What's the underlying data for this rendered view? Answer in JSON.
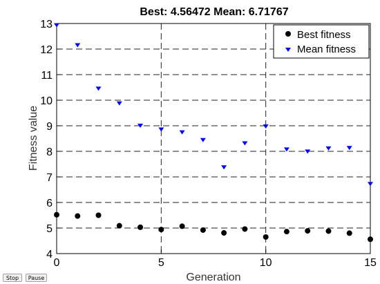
{
  "chart_data": {
    "type": "scatter",
    "title": "Best: 4.56472 Mean: 6.71767",
    "xlabel": "Generation",
    "ylabel": "Fitness value",
    "xlim": [
      0,
      15
    ],
    "ylim": [
      4,
      13
    ],
    "xticks": [
      "0",
      "5",
      "10",
      "15"
    ],
    "yticks": [
      "4",
      "5",
      "6",
      "7",
      "8",
      "9",
      "10",
      "11",
      "12",
      "13"
    ],
    "grid": true,
    "legend_position": "top-right",
    "series": [
      {
        "name": "Best fitness",
        "marker": "circle",
        "color": "#000000",
        "x": [
          0,
          1,
          2,
          3,
          4,
          5,
          6,
          7,
          8,
          9,
          10,
          11,
          12,
          13,
          14,
          15
        ],
        "y": [
          5.52,
          5.47,
          5.5,
          5.09,
          5.03,
          4.94,
          5.07,
          4.92,
          4.81,
          4.96,
          4.65,
          4.86,
          4.89,
          4.88,
          4.8,
          4.56
        ]
      },
      {
        "name": "Mean fitness",
        "marker": "triangle-down",
        "color": "#0000ff",
        "x": [
          0,
          1,
          2,
          3,
          4,
          5,
          6,
          7,
          8,
          9,
          10,
          11,
          12,
          13,
          14,
          15
        ],
        "y": [
          12.93,
          12.15,
          10.45,
          9.87,
          9.0,
          8.85,
          8.74,
          8.44,
          7.37,
          8.31,
          8.97,
          8.07,
          7.99,
          8.11,
          8.13,
          6.72
        ]
      }
    ]
  },
  "controls": {
    "stop_label": "Stop",
    "pause_label": "Pause"
  }
}
